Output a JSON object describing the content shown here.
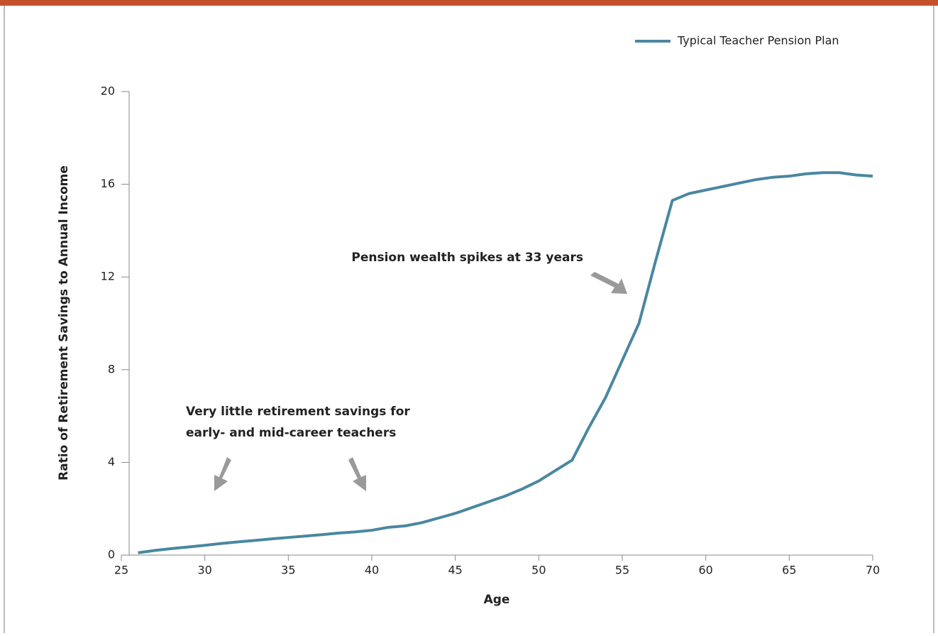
{
  "chart_data": {
    "type": "line",
    "legend": "top-right",
    "x_label": "Age",
    "y_label": "Ratio of Retirement Savings to Annual Income",
    "annotations": [
      "Pension wealth spikes at 33 years",
      "Very little retirement savings for",
      "early- and mid-career teachers"
    ],
    "x": [
      26,
      27,
      28,
      29,
      30,
      31,
      32,
      33,
      34,
      35,
      36,
      37,
      38,
      39,
      40,
      41,
      42,
      43,
      44,
      45,
      46,
      47,
      48,
      49,
      50,
      51,
      52,
      53,
      54,
      55,
      56,
      57,
      58,
      59,
      60,
      61,
      62,
      63,
      64,
      65,
      66,
      67,
      68,
      69,
      70
    ],
    "series": [
      {
        "name": "Typical Teacher Pension Plan",
        "color": "#4a87a0",
        "values": [
          0.1,
          0.2,
          0.28,
          0.35,
          0.42,
          0.5,
          0.57,
          0.63,
          0.7,
          0.76,
          0.82,
          0.88,
          0.95,
          1.0,
          1.07,
          1.2,
          1.26,
          1.4,
          1.6,
          1.8,
          2.05,
          2.3,
          2.55,
          2.85,
          3.2,
          3.65,
          4.1,
          5.5,
          6.8,
          8.4,
          10.0,
          12.7,
          15.3,
          15.6,
          15.75,
          15.9,
          16.05,
          16.2,
          16.3,
          16.35,
          16.45,
          16.5,
          16.5,
          16.4,
          16.35
        ]
      }
    ],
    "xlim": [
      25,
      70
    ],
    "xticks": [
      25,
      30,
      35,
      40,
      45,
      50,
      55,
      60,
      65,
      70
    ],
    "ylim": [
      0,
      20
    ],
    "yticks": [
      0,
      4,
      8,
      12,
      16,
      20
    ]
  }
}
